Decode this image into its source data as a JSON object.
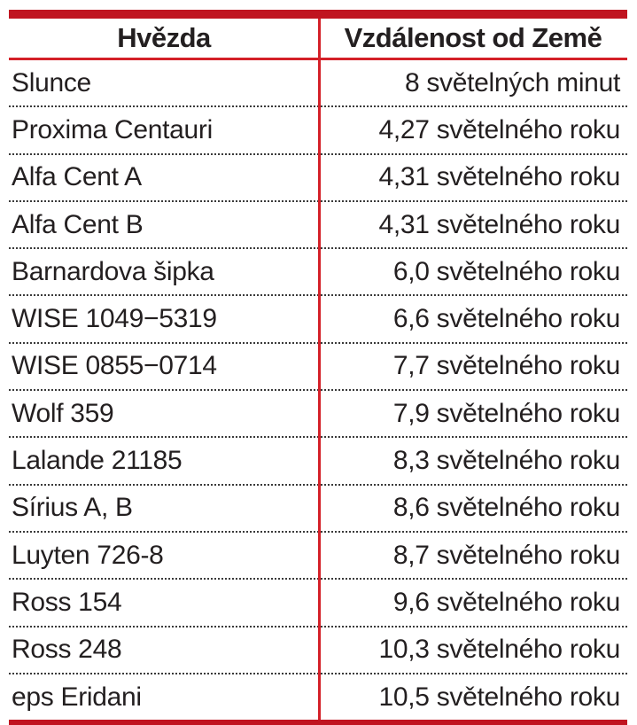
{
  "table": {
    "columns": [
      {
        "label": "Hvězda"
      },
      {
        "label": "Vzdálenost od Země"
      }
    ],
    "rows": [
      {
        "star": "Slunce",
        "distance": "8 světelných minut"
      },
      {
        "star": "Proxima Centauri",
        "distance": "4,27 světelného roku"
      },
      {
        "star": "Alfa Cent A",
        "distance": "4,31 světelného roku"
      },
      {
        "star": "Alfa Cent B",
        "distance": "4,31 světelného roku"
      },
      {
        "star": "Barnardova šipka",
        "distance": "6,0 světelného roku"
      },
      {
        "star": "WISE 1049−5319",
        "distance": "6,6 světelného roku"
      },
      {
        "star": "WISE 0855−0714",
        "distance": "7,7 světelného roku"
      },
      {
        "star": "Wolf 359",
        "distance": "7,9 světelného roku"
      },
      {
        "star": "Lalande 21185",
        "distance": "8,3 světelného roku"
      },
      {
        "star": "Sírius A, B",
        "distance": "8,6 světelného roku"
      },
      {
        "star": "Luyten 726-8",
        "distance": "8,7 světelného roku"
      },
      {
        "star": "Ross 154",
        "distance": "9,6 světelného roku"
      },
      {
        "star": "Ross 248",
        "distance": "10,3 světelného roku"
      },
      {
        "star": "eps Eridani",
        "distance": "10,5 světelného roku"
      }
    ],
    "colors": {
      "bar_red": "#c01420",
      "line_red": "#d42028",
      "text": "#231f20",
      "dotted": "#3a3a3a"
    }
  },
  "chart_data": {
    "type": "table",
    "columns": [
      "Hvězda",
      "Vzdálenost od Země"
    ],
    "rows": [
      [
        "Slunce",
        "8 světelných minut"
      ],
      [
        "Proxima Centauri",
        "4,27 světelného roku"
      ],
      [
        "Alfa Cent A",
        "4,31 světelného roku"
      ],
      [
        "Alfa Cent B",
        "4,31 světelného roku"
      ],
      [
        "Barnardova šipka",
        "6,0 světelného roku"
      ],
      [
        "WISE 1049−5319",
        "6,6 světelného roku"
      ],
      [
        "WISE 0855−0714",
        "7,7 světelného roku"
      ],
      [
        "Wolf 359",
        "7,9 světelného roku"
      ],
      [
        "Lalande 21185",
        "8,3 světelného roku"
      ],
      [
        "Sírius A, B",
        "8,6 světelného roku"
      ],
      [
        "Luyten 726-8",
        "8,7 světelného roku"
      ],
      [
        "Ross 154",
        "9,6 světelného roku"
      ],
      [
        "Ross 248",
        "10,3 světelného roku"
      ],
      [
        "eps Eridani",
        "10,5 světelného roku"
      ]
    ]
  }
}
